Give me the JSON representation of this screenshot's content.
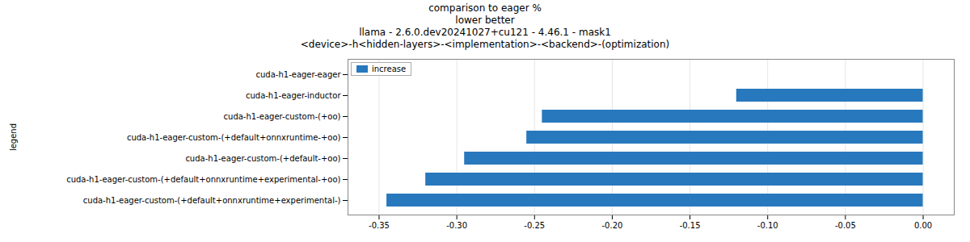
{
  "chart_data": {
    "type": "bar",
    "orientation": "horizontal",
    "title": "comparison to eager %\nlower better\nllama - 2.6.0.dev20241027+cu121 - 4.46.1 - mask1\n<device>-h<hidden-layers>-<implementation>-<backend>-(optimization)",
    "ylabel": "legend",
    "categories": [
      "cuda-h1-eager-eager",
      "cuda-h1-eager-inductor",
      "cuda-h1-eager-custom-(+oo)",
      "cuda-h1-eager-custom-(+default+onnxruntime-+oo)",
      "cuda-h1-eager-custom-(+default-+oo)",
      "cuda-h1-eager-custom-(+default+onnxruntime+experimental-+oo)",
      "cuda-h1-eager-custom-(+default+onnxruntime+experimental-)"
    ],
    "series": [
      {
        "name": "increase",
        "color": "#2878bd",
        "values": [
          0.0,
          -0.12,
          -0.245,
          -0.255,
          -0.295,
          -0.32,
          -0.345
        ]
      }
    ],
    "xlim": [
      -0.37,
      0.02
    ],
    "xticks": [
      -0.35,
      {
        "value": -0.3,
        "label": "-0.30"
      },
      -0.25,
      {
        "value": -0.2,
        "label": "-0.20"
      },
      -0.15,
      {
        "value": -0.1,
        "label": "-0.10"
      },
      -0.05,
      {
        "value": 0.0,
        "label": "0.00"
      }
    ],
    "grid": true,
    "legend": "upper left"
  }
}
